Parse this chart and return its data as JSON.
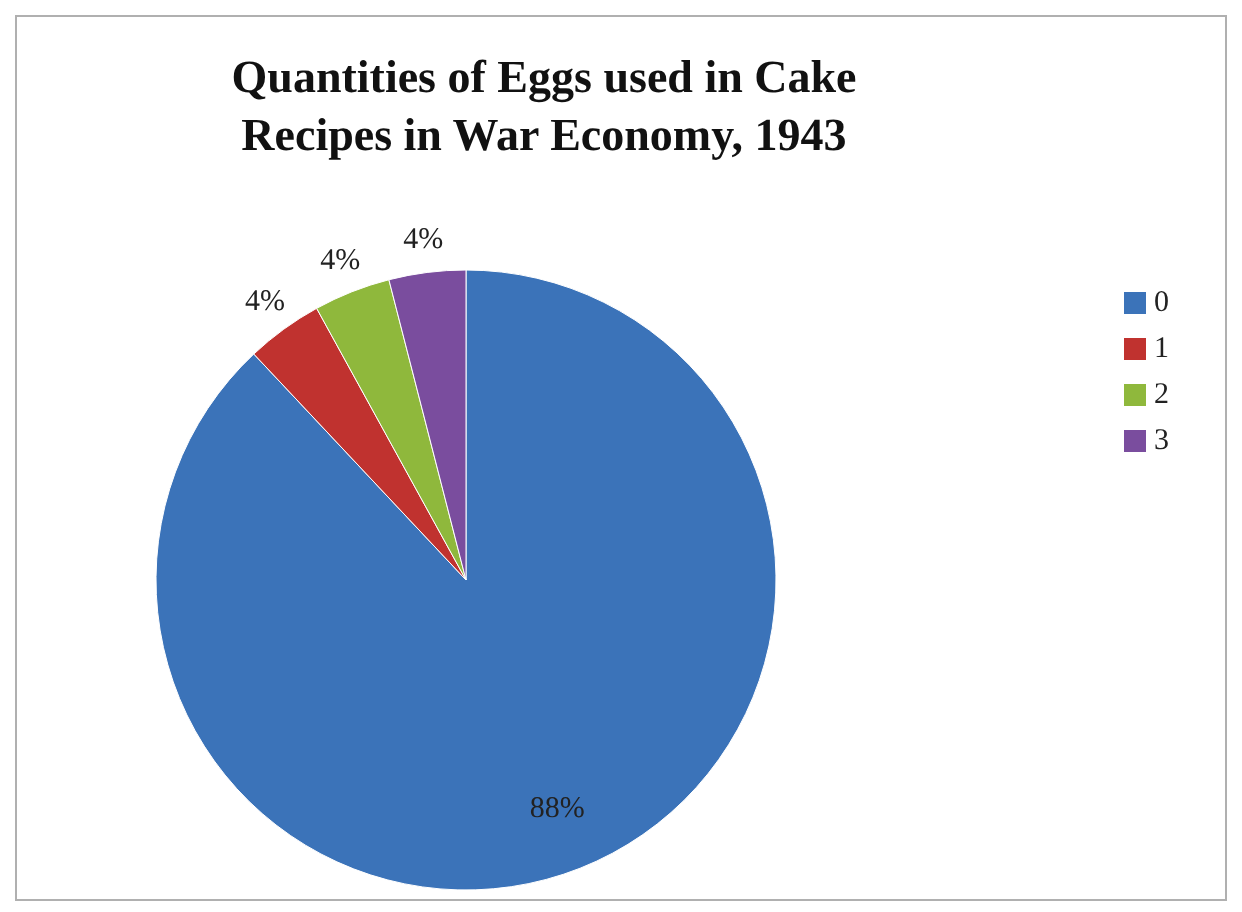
{
  "chart_data": {
    "type": "pie",
    "title": "Quantities of Eggs used in Cake Recipes in War Economy, 1943",
    "categories": [
      "0",
      "1",
      "2",
      "3"
    ],
    "values": [
      88,
      4,
      4,
      4
    ],
    "colors": [
      "#3b73b9",
      "#c0322f",
      "#8fb83c",
      "#7a4d9e"
    ],
    "value_labels": [
      "88%",
      "4%",
      "4%",
      "4%"
    ],
    "legend": "right"
  }
}
